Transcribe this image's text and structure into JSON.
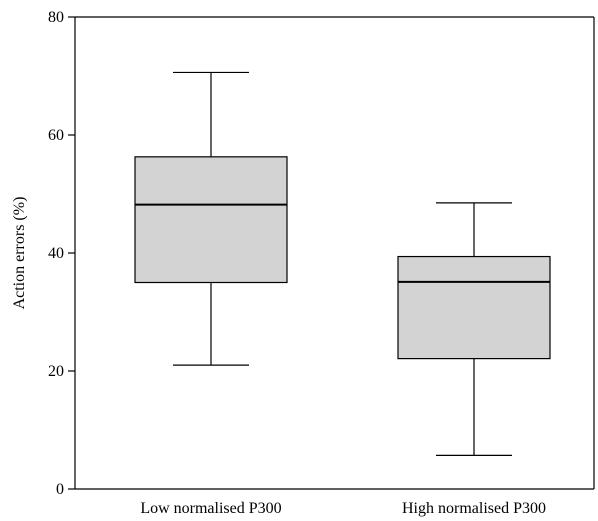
{
  "chart_data": {
    "type": "box",
    "title": "",
    "xlabel": "",
    "ylabel": "Action errors (%)",
    "ylim": [
      0,
      80
    ],
    "yticks": [
      "0",
      "20",
      "40",
      "60",
      "80"
    ],
    "grid": false,
    "box_fill_color": "#d3d3d3",
    "categories": [
      "Low normalised P300",
      "High normalised P300"
    ],
    "boxes": [
      {
        "category": "Low normalised P300",
        "min": 21,
        "q1": 35,
        "median": 48.2,
        "q3": 56.3,
        "max": 70.6
      },
      {
        "category": "High normalised P300",
        "min": 5.7,
        "q1": 22.1,
        "median": 35.1,
        "q3": 39.4,
        "max": 48.5
      }
    ]
  }
}
